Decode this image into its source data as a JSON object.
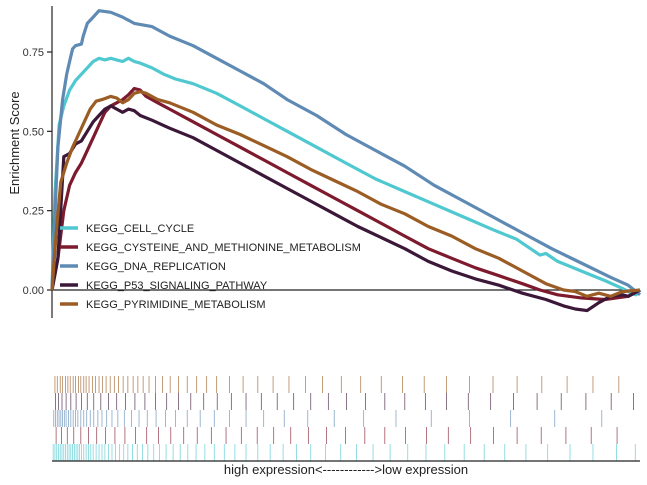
{
  "chart_data": {
    "type": "line",
    "ylabel": "Enrichment Score",
    "xlabel": "high expression<------------>low expression",
    "ylim": [
      -0.1,
      0.9
    ],
    "xlim": [
      0,
      100
    ],
    "yticks": [
      0.0,
      0.25,
      0.5,
      0.75
    ],
    "ytick_labels": [
      "0.00",
      "0.25",
      "0.50",
      "0.75"
    ],
    "legend_position": "bottom-left",
    "series": [
      {
        "name": "KEGG_CELL_CYCLE",
        "color": "#4fc8d0",
        "points": [
          [
            0,
            0
          ],
          [
            0.5,
            0.3
          ],
          [
            1.2,
            0.52
          ],
          [
            2,
            0.58
          ],
          [
            3,
            0.63
          ],
          [
            4,
            0.66
          ],
          [
            5,
            0.68
          ],
          [
            6,
            0.7
          ],
          [
            7,
            0.72
          ],
          [
            8,
            0.73
          ],
          [
            9,
            0.725
          ],
          [
            10,
            0.73
          ],
          [
            11,
            0.725
          ],
          [
            12,
            0.72
          ],
          [
            13,
            0.73
          ],
          [
            14,
            0.72
          ],
          [
            15,
            0.715
          ],
          [
            17,
            0.7
          ],
          [
            19,
            0.68
          ],
          [
            21,
            0.665
          ],
          [
            24,
            0.65
          ],
          [
            28,
            0.62
          ],
          [
            32,
            0.58
          ],
          [
            36,
            0.54
          ],
          [
            40,
            0.5
          ],
          [
            45,
            0.45
          ],
          [
            50,
            0.4
          ],
          [
            55,
            0.35
          ],
          [
            60,
            0.31
          ],
          [
            65,
            0.27
          ],
          [
            70,
            0.23
          ],
          [
            75,
            0.19
          ],
          [
            79,
            0.16
          ],
          [
            81,
            0.135
          ],
          [
            83,
            0.11
          ],
          [
            84,
            0.115
          ],
          [
            86,
            0.09
          ],
          [
            90,
            0.06
          ],
          [
            94,
            0.03
          ],
          [
            97,
            0.005
          ],
          [
            98.5,
            -0.01
          ],
          [
            99.3,
            -0.015
          ],
          [
            100,
            0
          ]
        ]
      },
      {
        "name": "KEGG_CYSTEINE_AND_METHIONINE_METABOLISM",
        "color": "#7d1a2d",
        "points": [
          [
            0,
            0
          ],
          [
            1,
            0.1
          ],
          [
            2,
            0.25
          ],
          [
            3,
            0.33
          ],
          [
            4,
            0.37
          ],
          [
            5,
            0.4
          ],
          [
            6,
            0.44
          ],
          [
            7,
            0.48
          ],
          [
            8,
            0.52
          ],
          [
            9,
            0.56
          ],
          [
            10,
            0.58
          ],
          [
            11,
            0.59
          ],
          [
            12,
            0.6
          ],
          [
            13,
            0.615
          ],
          [
            14,
            0.635
          ],
          [
            15,
            0.63
          ],
          [
            16,
            0.61
          ],
          [
            18,
            0.59
          ],
          [
            20,
            0.57
          ],
          [
            24,
            0.53
          ],
          [
            28,
            0.49
          ],
          [
            32,
            0.45
          ],
          [
            36,
            0.41
          ],
          [
            40,
            0.37
          ],
          [
            44,
            0.33
          ],
          [
            48,
            0.29
          ],
          [
            52,
            0.25
          ],
          [
            56,
            0.21
          ],
          [
            60,
            0.17
          ],
          [
            64,
            0.13
          ],
          [
            68,
            0.1
          ],
          [
            72,
            0.07
          ],
          [
            76,
            0.045
          ],
          [
            80,
            0.02
          ],
          [
            83,
            0.0
          ],
          [
            86,
            -0.015
          ],
          [
            90,
            -0.025
          ],
          [
            94,
            -0.03
          ],
          [
            96,
            -0.025
          ],
          [
            98,
            -0.02
          ],
          [
            100,
            0
          ]
        ]
      },
      {
        "name": "KEGG_DNA_REPLICATION",
        "color": "#5e8ab3",
        "points": [
          [
            0,
            0
          ],
          [
            0.4,
            0.2
          ],
          [
            1,
            0.45
          ],
          [
            1.8,
            0.6
          ],
          [
            2.5,
            0.68
          ],
          [
            3,
            0.72
          ],
          [
            3.5,
            0.76
          ],
          [
            4,
            0.77
          ],
          [
            5,
            0.775
          ],
          [
            5.3,
            0.8
          ],
          [
            6,
            0.84
          ],
          [
            7,
            0.86
          ],
          [
            8,
            0.88
          ],
          [
            10,
            0.875
          ],
          [
            12,
            0.86
          ],
          [
            14,
            0.84
          ],
          [
            17,
            0.83
          ],
          [
            20,
            0.8
          ],
          [
            24,
            0.77
          ],
          [
            28,
            0.73
          ],
          [
            32,
            0.69
          ],
          [
            36,
            0.65
          ],
          [
            40,
            0.6
          ],
          [
            45,
            0.55
          ],
          [
            50,
            0.49
          ],
          [
            55,
            0.44
          ],
          [
            60,
            0.39
          ],
          [
            65,
            0.33
          ],
          [
            70,
            0.28
          ],
          [
            75,
            0.23
          ],
          [
            80,
            0.18
          ],
          [
            85,
            0.13
          ],
          [
            90,
            0.085
          ],
          [
            95,
            0.04
          ],
          [
            98,
            0.015
          ],
          [
            99,
            0.0
          ],
          [
            100,
            -0.015
          ]
        ]
      },
      {
        "name": "KEGG_P53_SIGNALING_PATHWAY",
        "color": "#3c1838",
        "points": [
          [
            0,
            0
          ],
          [
            1,
            0.1
          ],
          [
            2,
            0.42
          ],
          [
            3,
            0.43
          ],
          [
            4,
            0.46
          ],
          [
            5,
            0.47
          ],
          [
            6,
            0.5
          ],
          [
            7,
            0.53
          ],
          [
            8,
            0.55
          ],
          [
            9,
            0.57
          ],
          [
            10,
            0.58
          ],
          [
            11,
            0.57
          ],
          [
            12,
            0.56
          ],
          [
            13,
            0.57
          ],
          [
            14,
            0.565
          ],
          [
            15,
            0.55
          ],
          [
            17,
            0.535
          ],
          [
            20,
            0.51
          ],
          [
            24,
            0.48
          ],
          [
            28,
            0.44
          ],
          [
            32,
            0.4
          ],
          [
            36,
            0.36
          ],
          [
            40,
            0.32
          ],
          [
            44,
            0.28
          ],
          [
            48,
            0.24
          ],
          [
            52,
            0.2
          ],
          [
            56,
            0.165
          ],
          [
            60,
            0.13
          ],
          [
            64,
            0.09
          ],
          [
            68,
            0.06
          ],
          [
            72,
            0.035
          ],
          [
            76,
            0.015
          ],
          [
            80,
            -0.01
          ],
          [
            84,
            -0.03
          ],
          [
            87,
            -0.05
          ],
          [
            89,
            -0.06
          ],
          [
            91,
            -0.065
          ],
          [
            93,
            -0.04
          ],
          [
            95,
            -0.02
          ],
          [
            97,
            -0.015
          ],
          [
            98,
            -0.02
          ],
          [
            99,
            -0.01
          ],
          [
            100,
            0
          ]
        ]
      },
      {
        "name": "KEGG_PYRIMIDINE_METABOLISM",
        "color": "#9b5d24",
        "points": [
          [
            0,
            0
          ],
          [
            0.8,
            0.2
          ],
          [
            1.5,
            0.34
          ],
          [
            2.5,
            0.4
          ],
          [
            3.5,
            0.45
          ],
          [
            4.5,
            0.49
          ],
          [
            5.5,
            0.53
          ],
          [
            6.5,
            0.57
          ],
          [
            7.5,
            0.595
          ],
          [
            8.5,
            0.6
          ],
          [
            10,
            0.61
          ],
          [
            11,
            0.605
          ],
          [
            12,
            0.59
          ],
          [
            13,
            0.6
          ],
          [
            14,
            0.62
          ],
          [
            15,
            0.625
          ],
          [
            16,
            0.62
          ],
          [
            18,
            0.6
          ],
          [
            20,
            0.59
          ],
          [
            24,
            0.56
          ],
          [
            28,
            0.52
          ],
          [
            32,
            0.49
          ],
          [
            36,
            0.455
          ],
          [
            40,
            0.42
          ],
          [
            44,
            0.38
          ],
          [
            48,
            0.345
          ],
          [
            52,
            0.31
          ],
          [
            56,
            0.27
          ],
          [
            60,
            0.24
          ],
          [
            64,
            0.2
          ],
          [
            68,
            0.17
          ],
          [
            72,
            0.13
          ],
          [
            76,
            0.1
          ],
          [
            80,
            0.06
          ],
          [
            84,
            0.02
          ],
          [
            87,
            0.0
          ],
          [
            89,
            -0.005
          ],
          [
            91,
            -0.02
          ],
          [
            93,
            -0.01
          ],
          [
            95,
            -0.02
          ],
          [
            97,
            -0.005
          ],
          [
            100,
            0
          ]
        ]
      }
    ],
    "rug_rows": [
      {
        "name": "KEGG_PYRIMIDINE_METABOLISM",
        "color": "#9b5d24",
        "positions": [
          0.5,
          0.9,
          1.4,
          1.8,
          2.3,
          2.7,
          3.1,
          3.6,
          4.0,
          4.5,
          4.9,
          5.4,
          5.8,
          6.3,
          6.9,
          7.4,
          8.0,
          8.6,
          9.2,
          9.9,
          10.6,
          11.3,
          12.1,
          12.9,
          13.8,
          14.6,
          15.5,
          16.5,
          17.6,
          18.8,
          20.1,
          21.5,
          23.0,
          24.6,
          26.3,
          28.0,
          30.2,
          32.5,
          35.0,
          37.6,
          40.3,
          43.1,
          46.0,
          49.2,
          52.5,
          56.0,
          59.6,
          63.3,
          67.1,
          71.0,
          75.0,
          79.1,
          83.3,
          87.6,
          92.0,
          96.4
        ]
      },
      {
        "name": "KEGG_P53_SIGNALING_PATHWAY",
        "color": "#3c1838",
        "positions": [
          0.6,
          1.1,
          1.7,
          2.4,
          3.2,
          4.1,
          5.0,
          6.0,
          7.1,
          8.3,
          9.6,
          11.0,
          12.5,
          14.1,
          15.8,
          17.6,
          19.5,
          21.5,
          23.6,
          25.8,
          28.1,
          30.5,
          33.0,
          35.6,
          38.3,
          41.1,
          44.0,
          47.0,
          50.1,
          53.3,
          56.6,
          60.0,
          63.5,
          67.1,
          70.8,
          74.6,
          78.5,
          82.5,
          86.6,
          90.8,
          95.1,
          98.9
        ]
      },
      {
        "name": "KEGG_DNA_REPLICATION",
        "color": "#5e8ab3",
        "positions": [
          0.3,
          0.6,
          0.9,
          1.2,
          1.5,
          1.8,
          2.1,
          2.4,
          2.8,
          3.2,
          3.6,
          4.0,
          4.4,
          4.9,
          5.4,
          5.9,
          6.5,
          7.1,
          7.8,
          8.5,
          9.3,
          10.2,
          11.2,
          12.3,
          13.5,
          14.8,
          16.2,
          17.7,
          19.3,
          21.0,
          23.0,
          25.2,
          27.6,
          30.2,
          33.0,
          36.0,
          39.5,
          43.5,
          48.0,
          53.0,
          58.5,
          64.5,
          71.0,
          78.0,
          85.5,
          93.5
        ]
      },
      {
        "name": "KEGG_CYSTEINE_AND_METHIONINE_METABOLISM",
        "color": "#7d1a2d",
        "positions": [
          0.7,
          1.6,
          2.6,
          3.7,
          4.9,
          6.2,
          7.6,
          9.1,
          10.7,
          12.4,
          14.2,
          16.1,
          18.1,
          20.2,
          22.4,
          24.7,
          27.1,
          29.6,
          32.2,
          34.9,
          37.7,
          40.6,
          43.6,
          46.7,
          49.9,
          53.2,
          56.6,
          60.1,
          63.7,
          67.4,
          71.2,
          75.1,
          79.1,
          83.2,
          87.4,
          91.7,
          96.1
        ]
      },
      {
        "name": "KEGG_CELL_CYCLE",
        "color": "#4fc8d0",
        "positions": [
          0.2,
          0.5,
          0.8,
          1.1,
          1.4,
          1.7,
          2.0,
          2.3,
          2.6,
          2.9,
          3.2,
          3.5,
          3.8,
          4.1,
          4.4,
          4.7,
          5.0,
          5.4,
          5.8,
          6.2,
          6.6,
          7.0,
          7.5,
          8.0,
          8.5,
          9.0,
          9.6,
          10.2,
          10.8,
          11.5,
          12.2,
          12.9,
          13.7,
          14.5,
          15.4,
          16.3,
          17.3,
          18.3,
          19.4,
          20.6,
          21.8,
          23.1,
          24.5,
          26.0,
          27.6,
          29.3,
          31.1,
          33.0,
          35.0,
          37.1,
          39.3,
          41.6,
          44.0,
          46.5,
          49.1,
          51.8,
          54.6,
          57.5,
          60.5,
          63.6,
          66.8,
          70.1,
          73.5,
          77.0,
          80.6,
          84.3,
          88.1,
          92.0,
          96.0,
          99.2
        ]
      }
    ]
  }
}
